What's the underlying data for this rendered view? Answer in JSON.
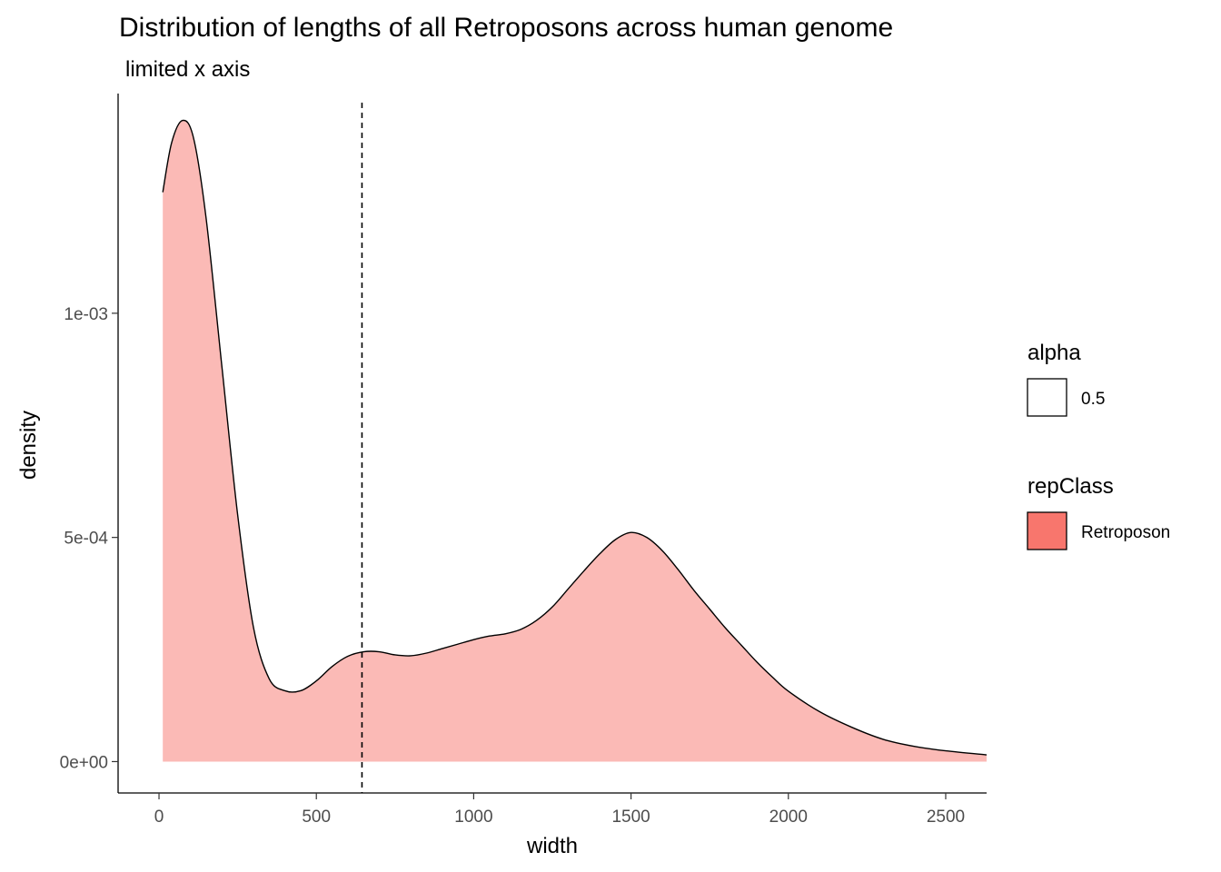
{
  "chart_data": {
    "type": "area",
    "title": "Distribution of lengths of all Retroposons across human genome",
    "subtitle": "limited x axis",
    "xlabel": "width",
    "ylabel": "density",
    "xlim": [
      -130,
      2630
    ],
    "ylim": [
      -7e-05,
      0.00149
    ],
    "x_ticks": [
      0,
      500,
      1000,
      1500,
      2000,
      2500
    ],
    "x_tick_labels": [
      "0",
      "500",
      "1000",
      "1500",
      "2000",
      "2500"
    ],
    "y_ticks": [
      0,
      0.0005,
      0.001
    ],
    "y_tick_labels": [
      "0e+00",
      "5e-04",
      "1e-03"
    ],
    "grid": false,
    "legend_position": "right",
    "vline": {
      "x": 645,
      "style": "dashed",
      "color": "#000000"
    },
    "series": [
      {
        "name": "Retroposon",
        "fill": "#F8766D",
        "fill_opacity": 0.5,
        "stroke": "#000000",
        "x": [
          12,
          40,
          75,
          110,
          150,
          200,
          250,
          300,
          350,
          400,
          450,
          500,
          550,
          600,
          650,
          700,
          750,
          800,
          850,
          900,
          950,
          1000,
          1050,
          1100,
          1150,
          1200,
          1250,
          1300,
          1350,
          1400,
          1450,
          1500,
          1550,
          1600,
          1650,
          1700,
          1750,
          1800,
          1850,
          1900,
          1950,
          2000,
          2100,
          2200,
          2300,
          2400,
          2500,
          2630
        ],
        "y": [
          0.00127,
          0.00138,
          0.00143,
          0.00139,
          0.00121,
          0.00088,
          0.00055,
          0.0003,
          0.000185,
          0.000158,
          0.000158,
          0.00018,
          0.000212,
          0.000235,
          0.000245,
          0.000245,
          0.000238,
          0.000236,
          0.000242,
          0.000252,
          0.000262,
          0.000272,
          0.00028,
          0.000285,
          0.000295,
          0.000315,
          0.000345,
          0.000385,
          0.000425,
          0.000463,
          0.000495,
          0.000511,
          0.0005,
          0.00047,
          0.000428,
          0.000382,
          0.00034,
          0.000298,
          0.00026,
          0.000222,
          0.000188,
          0.000157,
          0.000111,
          7.7e-05,
          5e-05,
          3.4e-05,
          2.4e-05,
          1.5e-05
        ]
      }
    ],
    "legend": {
      "alpha": {
        "title": "alpha",
        "items": [
          {
            "label": "0.5",
            "fill": "#ffffff"
          }
        ]
      },
      "repClass": {
        "title": "repClass",
        "items": [
          {
            "label": "Retroposon",
            "fill": "#F8766D"
          }
        ]
      }
    }
  }
}
